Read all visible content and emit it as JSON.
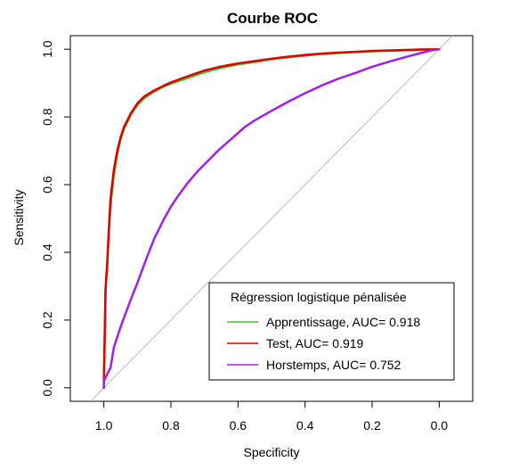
{
  "chart_data": {
    "type": "line",
    "title": "Courbe ROC",
    "xlabel": "Specificity",
    "ylabel": "Sensitivity",
    "x_reversed": true,
    "xlim": [
      1.1,
      -0.1
    ],
    "ylim": [
      0.0,
      1.0
    ],
    "x_ticks": [
      1.0,
      0.8,
      0.6,
      0.4,
      0.2,
      0.0
    ],
    "x_tick_labels": [
      "1.0",
      "0.8",
      "0.6",
      "0.4",
      "0.2",
      "0.0"
    ],
    "y_ticks": [
      0.0,
      0.2,
      0.4,
      0.6,
      0.8,
      1.0
    ],
    "y_tick_labels": [
      "0.0",
      "0.2",
      "0.4",
      "0.6",
      "0.8",
      "1.0"
    ],
    "grid": false,
    "reference_line": {
      "from": [
        1.0,
        0.0
      ],
      "to": [
        0.0,
        1.0
      ],
      "color": "#bebebe"
    },
    "legend": {
      "title": "Régression logistique pénalisée",
      "placement": "bottom-right"
    },
    "series": [
      {
        "name": "Apprentissage, AUC= 0.918",
        "color": "#32cd32",
        "x": [
          1.0,
          0.995,
          0.99,
          0.985,
          0.98,
          0.97,
          0.96,
          0.95,
          0.94,
          0.92,
          0.9,
          0.88,
          0.85,
          0.82,
          0.8,
          0.75,
          0.7,
          0.65,
          0.6,
          0.55,
          0.5,
          0.45,
          0.4,
          0.35,
          0.3,
          0.2,
          0.1,
          0.05,
          0.0
        ],
        "y": [
          0.0,
          0.29,
          0.36,
          0.46,
          0.54,
          0.63,
          0.69,
          0.735,
          0.765,
          0.805,
          0.835,
          0.855,
          0.875,
          0.89,
          0.898,
          0.915,
          0.932,
          0.945,
          0.955,
          0.962,
          0.97,
          0.976,
          0.981,
          0.986,
          0.989,
          0.994,
          0.997,
          0.999,
          1.0
        ]
      },
      {
        "name": "Test, AUC= 0.919",
        "color": "#e00000",
        "x": [
          1.0,
          1.0,
          0.995,
          0.99,
          0.985,
          0.98,
          0.97,
          0.96,
          0.95,
          0.94,
          0.92,
          0.9,
          0.88,
          0.85,
          0.82,
          0.8,
          0.75,
          0.7,
          0.65,
          0.6,
          0.55,
          0.5,
          0.45,
          0.4,
          0.35,
          0.3,
          0.2,
          0.1,
          0.05,
          0.0
        ],
        "y": [
          0.0,
          0.02,
          0.29,
          0.37,
          0.47,
          0.56,
          0.645,
          0.7,
          0.74,
          0.77,
          0.81,
          0.84,
          0.86,
          0.878,
          0.893,
          0.902,
          0.92,
          0.937,
          0.949,
          0.958,
          0.965,
          0.972,
          0.978,
          0.983,
          0.987,
          0.99,
          0.995,
          0.998,
          0.999,
          1.0
        ]
      },
      {
        "name": "Horstemps, AUC= 0.752",
        "color": "#a020f0",
        "x": [
          1.0,
          1.0,
          0.99,
          0.98,
          0.97,
          0.96,
          0.95,
          0.92,
          0.9,
          0.87,
          0.85,
          0.82,
          0.8,
          0.78,
          0.75,
          0.72,
          0.7,
          0.66,
          0.62,
          0.58,
          0.55,
          0.5,
          0.45,
          0.4,
          0.35,
          0.3,
          0.25,
          0.2,
          0.15,
          0.1,
          0.05,
          0.02,
          0.0
        ],
        "y": [
          0.0,
          0.02,
          0.04,
          0.06,
          0.12,
          0.15,
          0.18,
          0.26,
          0.31,
          0.39,
          0.44,
          0.5,
          0.535,
          0.565,
          0.605,
          0.64,
          0.66,
          0.7,
          0.735,
          0.77,
          0.79,
          0.818,
          0.845,
          0.87,
          0.893,
          0.913,
          0.93,
          0.948,
          0.963,
          0.977,
          0.99,
          0.997,
          1.0
        ]
      }
    ]
  }
}
